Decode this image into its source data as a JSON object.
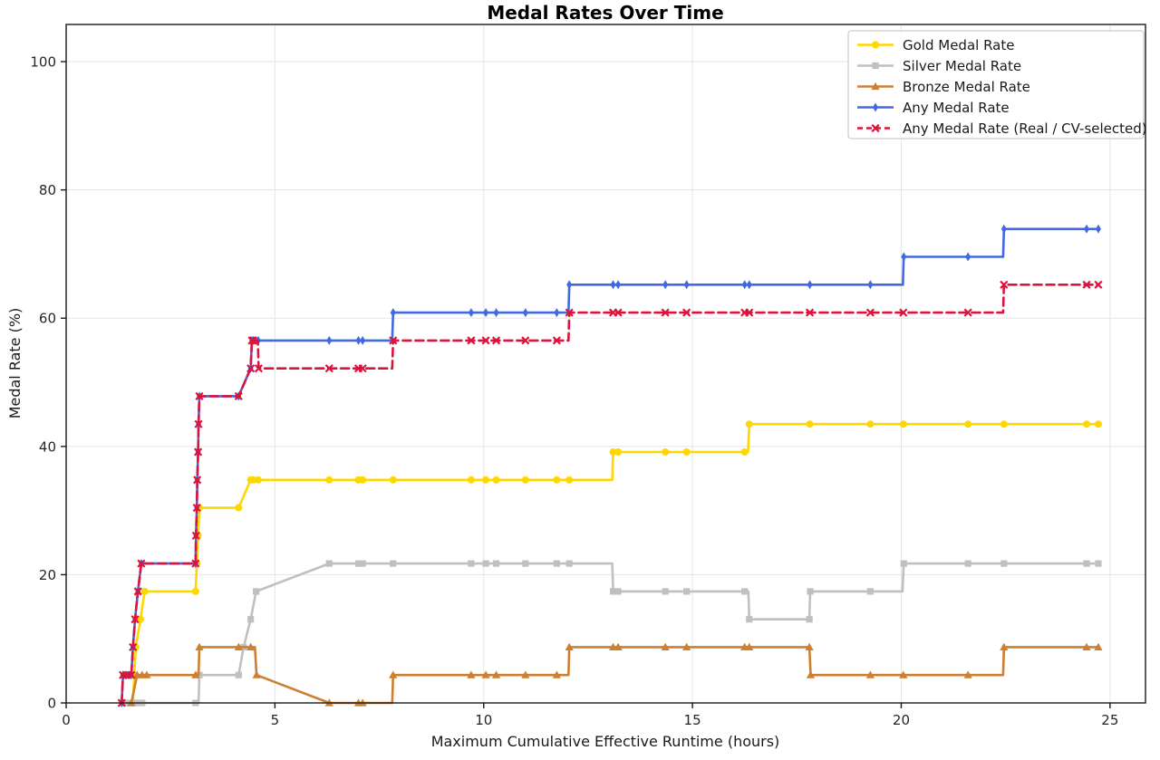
{
  "chart_data": {
    "type": "line",
    "title": "Medal Rates Over Time",
    "xlabel": "Maximum Cumulative Effective Runtime (hours)",
    "ylabel": "Medal Rate (%)",
    "xlim": [
      0,
      25.85
    ],
    "ylim": [
      0,
      105.8
    ],
    "xticks": [
      0,
      5,
      10,
      15,
      20,
      25
    ],
    "yticks": [
      0,
      20,
      40,
      60,
      80,
      100
    ],
    "grid": true,
    "grid_color": "#e5e5e5",
    "spine_color": "#1a1a1a",
    "legend_position": "upper right",
    "series": [
      {
        "name": "Gold Medal Rate",
        "color": "#FFD700",
        "marker": "circle",
        "dash": null,
        "points": [
          [
            1.6,
            0
          ],
          [
            1.63,
            4.35
          ],
          [
            1.67,
            8.7
          ],
          [
            1.78,
            13.04
          ],
          [
            1.88,
            17.39
          ],
          [
            3.1,
            17.39
          ],
          [
            3.13,
            21.74
          ],
          [
            3.16,
            26.09
          ],
          [
            3.19,
            30.43
          ],
          [
            4.13,
            30.43
          ],
          [
            4.42,
            34.78
          ],
          [
            4.48,
            34.78
          ],
          [
            4.6,
            34.78
          ],
          [
            6.3,
            34.78
          ],
          [
            7.0,
            34.78
          ],
          [
            7.1,
            34.78
          ],
          [
            7.83,
            34.78
          ],
          [
            9.7,
            34.78
          ],
          [
            10.05,
            34.78
          ],
          [
            10.3,
            34.78
          ],
          [
            11.0,
            34.78
          ],
          [
            11.75,
            34.78
          ],
          [
            12.05,
            34.78
          ],
          [
            13.08,
            34.78,
            0
          ],
          [
            13.1,
            39.13
          ],
          [
            13.22,
            39.13
          ],
          [
            14.35,
            39.13
          ],
          [
            14.86,
            39.13
          ],
          [
            16.25,
            39.13
          ],
          [
            16.33,
            39.13,
            0
          ],
          [
            16.36,
            43.48
          ],
          [
            17.81,
            43.48
          ],
          [
            19.26,
            43.48
          ],
          [
            20.05,
            43.48
          ],
          [
            21.6,
            43.48
          ],
          [
            22.46,
            43.48
          ],
          [
            24.44,
            43.48
          ],
          [
            24.72,
            43.48
          ]
        ]
      },
      {
        "name": "Silver Medal Rate",
        "color": "#C0C0C0",
        "marker": "square",
        "dash": null,
        "points": [
          [
            1.45,
            0
          ],
          [
            1.56,
            0
          ],
          [
            1.67,
            0
          ],
          [
            1.82,
            0
          ],
          [
            3.1,
            0
          ],
          [
            3.17,
            0,
            0
          ],
          [
            3.19,
            4.35
          ],
          [
            4.13,
            4.35
          ],
          [
            4.25,
            8.7
          ],
          [
            4.42,
            13.04
          ],
          [
            4.55,
            17.39
          ],
          [
            6.3,
            21.74
          ],
          [
            7.0,
            21.74
          ],
          [
            7.1,
            21.74
          ],
          [
            7.83,
            21.74
          ],
          [
            9.7,
            21.74
          ],
          [
            10.05,
            21.74
          ],
          [
            10.3,
            21.74
          ],
          [
            11.0,
            21.74
          ],
          [
            11.75,
            21.74
          ],
          [
            12.05,
            21.74
          ],
          [
            13.08,
            21.74,
            0
          ],
          [
            13.1,
            17.39
          ],
          [
            13.22,
            17.39
          ],
          [
            14.35,
            17.39
          ],
          [
            14.86,
            17.39
          ],
          [
            16.25,
            17.39
          ],
          [
            16.34,
            17.39,
            0
          ],
          [
            16.36,
            13.04
          ],
          [
            17.8,
            13.04
          ],
          [
            17.82,
            17.39
          ],
          [
            19.26,
            17.39
          ],
          [
            20.03,
            17.39,
            0
          ],
          [
            20.06,
            21.74
          ],
          [
            21.6,
            21.74
          ],
          [
            22.46,
            21.74
          ],
          [
            24.44,
            21.74
          ],
          [
            24.72,
            21.74
          ]
        ]
      },
      {
        "name": "Bronze Medal Rate",
        "color": "#CD7F32",
        "marker": "triangle",
        "dash": null,
        "points": [
          [
            1.56,
            0
          ],
          [
            1.7,
            4.35
          ],
          [
            1.82,
            4.35
          ],
          [
            1.93,
            4.35
          ],
          [
            3.1,
            4.35
          ],
          [
            3.17,
            4.35,
            0
          ],
          [
            3.19,
            8.7
          ],
          [
            4.13,
            8.7
          ],
          [
            4.42,
            8.7
          ],
          [
            4.52,
            8.7,
            0
          ],
          [
            4.56,
            4.35
          ],
          [
            6.3,
            0
          ],
          [
            7.0,
            0
          ],
          [
            7.1,
            0
          ],
          [
            7.81,
            0,
            0
          ],
          [
            7.83,
            4.35
          ],
          [
            9.7,
            4.35
          ],
          [
            10.05,
            4.35
          ],
          [
            10.3,
            4.35
          ],
          [
            11.0,
            4.35
          ],
          [
            11.75,
            4.35
          ],
          [
            12.03,
            4.35,
            0
          ],
          [
            12.05,
            8.7
          ],
          [
            13.1,
            8.7
          ],
          [
            13.22,
            8.7
          ],
          [
            14.35,
            8.7
          ],
          [
            14.86,
            8.7
          ],
          [
            16.25,
            8.7
          ],
          [
            16.36,
            8.7
          ],
          [
            17.8,
            8.7
          ],
          [
            17.83,
            4.35
          ],
          [
            19.26,
            4.35
          ],
          [
            20.05,
            4.35
          ],
          [
            21.6,
            4.35
          ],
          [
            22.44,
            4.35,
            0
          ],
          [
            22.46,
            8.7
          ],
          [
            24.44,
            8.7
          ],
          [
            24.72,
            8.7
          ]
        ]
      },
      {
        "name": "Any Medal Rate",
        "color": "#4169E1",
        "marker": "diamond",
        "dash": null,
        "points": [
          [
            1.33,
            0
          ],
          [
            1.36,
            4.35
          ],
          [
            1.45,
            4.35
          ],
          [
            1.56,
            4.35
          ],
          [
            1.6,
            8.7
          ],
          [
            1.65,
            13.04
          ],
          [
            1.72,
            17.39
          ],
          [
            1.8,
            21.74
          ],
          [
            3.1,
            21.74
          ],
          [
            3.11,
            26.09
          ],
          [
            3.13,
            30.43
          ],
          [
            3.14,
            34.78
          ],
          [
            3.16,
            39.13
          ],
          [
            3.17,
            43.48
          ],
          [
            3.19,
            47.83
          ],
          [
            4.13,
            47.83
          ],
          [
            4.42,
            52.17
          ],
          [
            4.45,
            56.52
          ],
          [
            4.48,
            56.52
          ],
          [
            4.6,
            56.52
          ],
          [
            6.3,
            56.52
          ],
          [
            7.0,
            56.52
          ],
          [
            7.1,
            56.52
          ],
          [
            7.81,
            56.52,
            0
          ],
          [
            7.83,
            60.87
          ],
          [
            9.7,
            60.87
          ],
          [
            10.05,
            60.87
          ],
          [
            10.3,
            60.87
          ],
          [
            11.0,
            60.87
          ],
          [
            11.75,
            60.87
          ],
          [
            12.03,
            60.87,
            0
          ],
          [
            12.05,
            65.22
          ],
          [
            13.1,
            65.22
          ],
          [
            13.22,
            65.22
          ],
          [
            14.35,
            65.22
          ],
          [
            14.86,
            65.22
          ],
          [
            16.25,
            65.22
          ],
          [
            16.36,
            65.22
          ],
          [
            17.81,
            65.22
          ],
          [
            19.26,
            65.22
          ],
          [
            20.04,
            65.22,
            0
          ],
          [
            20.06,
            69.57
          ],
          [
            21.6,
            69.57
          ],
          [
            22.44,
            69.57,
            0
          ],
          [
            22.46,
            73.91
          ],
          [
            24.44,
            73.91
          ],
          [
            24.72,
            73.91
          ]
        ]
      },
      {
        "name": "Any Medal Rate (Real / CV-selected)",
        "color": "#DC143C",
        "marker": "x",
        "dash": [
          9,
          5
        ],
        "points": [
          [
            1.33,
            0
          ],
          [
            1.36,
            4.35
          ],
          [
            1.45,
            4.35
          ],
          [
            1.56,
            4.35
          ],
          [
            1.6,
            8.7
          ],
          [
            1.65,
            13.04
          ],
          [
            1.72,
            17.39
          ],
          [
            1.8,
            21.74
          ],
          [
            3.1,
            21.74
          ],
          [
            3.11,
            26.09
          ],
          [
            3.13,
            30.43
          ],
          [
            3.14,
            34.78
          ],
          [
            3.16,
            39.13
          ],
          [
            3.17,
            43.48
          ],
          [
            3.19,
            47.83
          ],
          [
            4.13,
            47.83
          ],
          [
            4.42,
            52.17
          ],
          [
            4.45,
            56.52
          ],
          [
            4.48,
            56.52
          ],
          [
            4.59,
            56.52,
            0
          ],
          [
            4.61,
            52.17
          ],
          [
            6.3,
            52.17
          ],
          [
            7.0,
            52.17
          ],
          [
            7.1,
            52.17
          ],
          [
            7.81,
            52.17,
            0
          ],
          [
            7.83,
            56.52
          ],
          [
            9.7,
            56.52
          ],
          [
            10.05,
            56.52
          ],
          [
            10.3,
            56.52
          ],
          [
            11.0,
            56.52
          ],
          [
            11.75,
            56.52
          ],
          [
            12.03,
            56.52,
            0
          ],
          [
            12.05,
            60.87
          ],
          [
            13.1,
            60.87
          ],
          [
            13.22,
            60.87
          ],
          [
            14.35,
            60.87
          ],
          [
            14.86,
            60.87
          ],
          [
            16.25,
            60.87
          ],
          [
            16.36,
            60.87
          ],
          [
            17.81,
            60.87
          ],
          [
            19.26,
            60.87
          ],
          [
            20.05,
            60.87
          ],
          [
            21.6,
            60.87
          ],
          [
            22.44,
            60.87,
            0
          ],
          [
            22.46,
            65.22
          ],
          [
            24.44,
            65.22
          ],
          [
            24.72,
            65.22
          ]
        ]
      }
    ]
  }
}
